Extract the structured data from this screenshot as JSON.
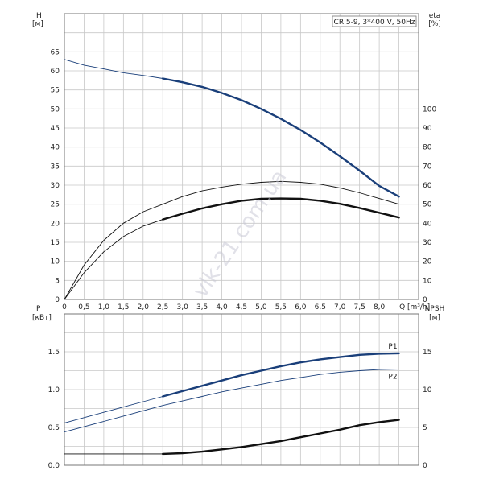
{
  "chart_data": [
    {
      "type": "line",
      "title": "CR 5-9, 3*400 V, 50Hz",
      "x_axis": {
        "label": "Q [m³/h]",
        "range": [
          0,
          9
        ],
        "ticks": [
          0,
          0.5,
          1.0,
          1.5,
          2.0,
          2.5,
          3.0,
          3.5,
          4.0,
          4.5,
          5.0,
          5.5,
          6.0,
          6.5,
          7.0,
          7.5,
          8.0
        ],
        "tick_labels": [
          "0",
          "0,5",
          "1,0",
          "1,5",
          "2,0",
          "2,5",
          "3,0",
          "3,5",
          "4,0",
          "4,5",
          "5,0",
          "5,5",
          "6,0",
          "6,5",
          "7,0",
          "7,5",
          "8,0"
        ]
      },
      "y_axis_left": {
        "label_line1": "H",
        "label_line2": "[м]",
        "range": [
          0,
          75
        ],
        "ticks": [
          0,
          5,
          10,
          15,
          20,
          25,
          30,
          35,
          40,
          45,
          50,
          55,
          60,
          65
        ],
        "tick_labels": [
          "0",
          "5",
          "10",
          "15",
          "20",
          "25",
          "30",
          "35",
          "40",
          "45",
          "50",
          "55",
          "60",
          "65"
        ]
      },
      "y_axis_right": {
        "label_line1": "eta",
        "label_line2": "[%]",
        "range": [
          0,
          150
        ],
        "ticks": [
          0,
          10,
          20,
          30,
          40,
          50,
          60,
          70,
          80,
          90,
          100
        ],
        "tick_labels": [
          "0",
          "10",
          "20",
          "30",
          "40",
          "50",
          "60",
          "70",
          "80",
          "90",
          "100"
        ]
      },
      "grid": true,
      "series": [
        {
          "color": "#1a3f7a",
          "axis": "left",
          "x": [
            0,
            0.5,
            1.0,
            1.5,
            2.0,
            2.5,
            3.0,
            3.5,
            4.0,
            4.5,
            5.0,
            5.5,
            6.0,
            6.5,
            7.0,
            7.5,
            8.0,
            8.5
          ],
          "y": [
            63,
            61.5,
            60.5,
            59.5,
            58.8,
            58,
            57,
            55.8,
            54.2,
            52.3,
            50,
            47.4,
            44.5,
            41.2,
            37.6,
            33.8,
            29.8,
            27
          ],
          "bold_from": 2.5
        },
        {
          "color": "#111111",
          "axis": "right",
          "x": [
            0,
            0.5,
            1.0,
            1.5,
            2.0,
            2.5,
            3.0,
            3.5,
            4.0,
            4.5,
            5.0,
            5.5,
            6.0,
            6.5,
            7.0,
            7.5,
            8.0,
            8.5
          ],
          "y": [
            0,
            18,
            31,
            40,
            46,
            50,
            54,
            57,
            59,
            60.5,
            61.5,
            62,
            61.5,
            60.5,
            58.5,
            56,
            53,
            50
          ],
          "bold_from": 99
        },
        {
          "color": "#111111",
          "axis": "right",
          "x": [
            0,
            0.5,
            1.0,
            1.5,
            2.0,
            2.5,
            3.0,
            3.5,
            4.0,
            4.5,
            5.0,
            5.5,
            6.0,
            6.5,
            7.0,
            7.5,
            8.0,
            8.5
          ],
          "y": [
            0,
            14,
            25,
            33,
            38.5,
            42,
            45,
            47.8,
            50,
            51.8,
            52.8,
            53,
            52.8,
            51.8,
            50.2,
            48,
            45.5,
            43
          ],
          "bold_from": 2.5
        }
      ]
    },
    {
      "type": "line",
      "x_axis": {
        "range": [
          0,
          9
        ],
        "ticks": [
          0,
          0.5,
          1.0,
          1.5,
          2.0,
          2.5,
          3.0,
          3.5,
          4.0,
          4.5,
          5.0,
          5.5,
          6.0,
          6.5,
          7.0,
          7.5,
          8.0
        ]
      },
      "y_axis_left": {
        "label_line1": "P",
        "label_line2": "[кВт]",
        "range": [
          0,
          2.0
        ],
        "ticks": [
          0,
          0.5,
          1.0,
          1.5
        ],
        "tick_labels": [
          "0.0",
          "0.5",
          "1.0",
          "1.5"
        ]
      },
      "y_axis_right": {
        "label_line1": "NPSH",
        "label_line2": "[м]",
        "range": [
          0,
          20
        ],
        "ticks": [
          0,
          5,
          10,
          15
        ],
        "tick_labels": [
          "0",
          "5",
          "10",
          "15"
        ]
      },
      "grid": true,
      "series": [
        {
          "name": "P1",
          "color": "#1a3f7a",
          "axis": "left",
          "x": [
            0,
            0.5,
            1.0,
            1.5,
            2.0,
            2.5,
            3.0,
            3.5,
            4.0,
            4.5,
            5.0,
            5.5,
            6.0,
            6.5,
            7.0,
            7.5,
            8.0,
            8.5
          ],
          "y": [
            0.56,
            0.63,
            0.7,
            0.77,
            0.84,
            0.91,
            0.98,
            1.05,
            1.12,
            1.19,
            1.25,
            1.31,
            1.36,
            1.4,
            1.43,
            1.46,
            1.475,
            1.48
          ],
          "bold_from": 2.5
        },
        {
          "name": "P2",
          "color": "#1a3f7a",
          "axis": "left",
          "x": [
            0,
            0.5,
            1.0,
            1.5,
            2.0,
            2.5,
            3.0,
            3.5,
            4.0,
            4.5,
            5.0,
            5.5,
            6.0,
            6.5,
            7.0,
            7.5,
            8.0,
            8.5
          ],
          "y": [
            0.44,
            0.51,
            0.58,
            0.65,
            0.72,
            0.79,
            0.85,
            0.91,
            0.97,
            1.02,
            1.07,
            1.12,
            1.16,
            1.2,
            1.23,
            1.25,
            1.265,
            1.27
          ],
          "bold_from": 99
        },
        {
          "color": "#111111",
          "axis": "right",
          "x": [
            0,
            0.5,
            1.0,
            1.5,
            2.0,
            2.5,
            3.0,
            3.5,
            4.0,
            4.5,
            5.0,
            5.5,
            6.0,
            6.5,
            7.0,
            7.5,
            8.0,
            8.5
          ],
          "y": [
            1.5,
            1.5,
            1.5,
            1.5,
            1.5,
            1.5,
            1.6,
            1.8,
            2.1,
            2.4,
            2.8,
            3.2,
            3.7,
            4.2,
            4.7,
            5.3,
            5.7,
            6.0
          ],
          "bold_from": 2.5
        }
      ]
    }
  ],
  "watermark": "vlk-21.com.ua"
}
